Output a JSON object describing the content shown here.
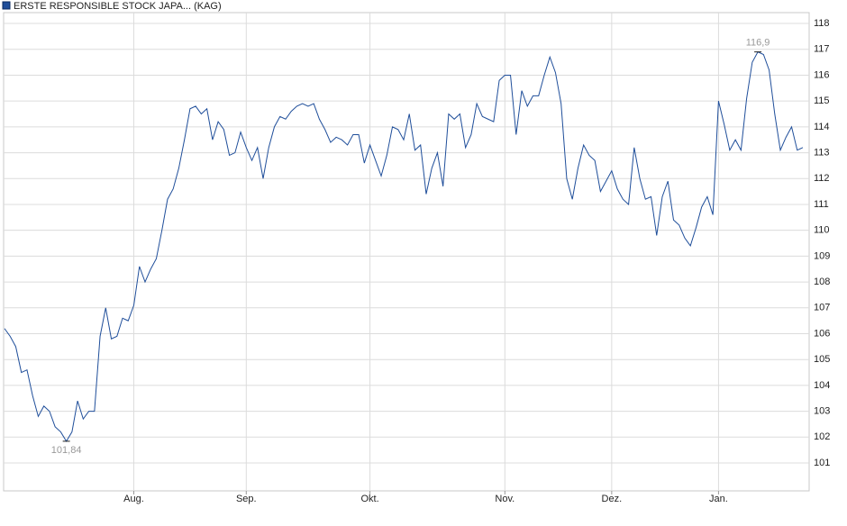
{
  "chart_data": {
    "type": "line",
    "categories": [
      null,
      null,
      null,
      null,
      null,
      null,
      null,
      null,
      null,
      null,
      null,
      null,
      null,
      null,
      null,
      null,
      null,
      null,
      null,
      null,
      null,
      null,
      null,
      "Aug.",
      null,
      null,
      null,
      null,
      null,
      null,
      null,
      null,
      null,
      null,
      null,
      null,
      null,
      null,
      null,
      null,
      null,
      null,
      null,
      "Sep.",
      null,
      null,
      null,
      null,
      null,
      null,
      null,
      null,
      null,
      null,
      null,
      null,
      null,
      null,
      null,
      null,
      null,
      null,
      null,
      null,
      null,
      "Okt.",
      null,
      null,
      null,
      null,
      null,
      null,
      null,
      null,
      null,
      null,
      null,
      null,
      null,
      null,
      null,
      null,
      null,
      null,
      null,
      null,
      null,
      null,
      null,
      "Nov.",
      null,
      null,
      null,
      null,
      null,
      null,
      null,
      null,
      null,
      null,
      null,
      null,
      null,
      null,
      null,
      null,
      null,
      null,
      "Dez.",
      null,
      null,
      null,
      null,
      null,
      null,
      null,
      null,
      null,
      null,
      null,
      null,
      null,
      null,
      null,
      null,
      null,
      null,
      "Jan.",
      null,
      null,
      null,
      null,
      null,
      null,
      null,
      null,
      null,
      null,
      null,
      null,
      null,
      null,
      null
    ],
    "series": [
      {
        "name": "ERSTE RESPONSIBLE STOCK JAPA... (KAG)",
        "color": "#1f4e9a",
        "values": [
          106.2,
          105.9,
          105.5,
          104.5,
          104.6,
          103.6,
          102.8,
          103.2,
          103.0,
          102.4,
          102.2,
          101.84,
          102.2,
          103.4,
          102.7,
          103.0,
          103.0,
          105.9,
          107.0,
          105.8,
          105.9,
          106.6,
          106.5,
          107.1,
          108.6,
          108.0,
          108.5,
          108.9,
          110.0,
          111.2,
          111.6,
          112.4,
          113.5,
          114.7,
          114.8,
          114.5,
          114.7,
          113.5,
          114.2,
          113.9,
          112.9,
          113.0,
          113.8,
          113.2,
          112.7,
          113.2,
          112.0,
          113.2,
          114.0,
          114.4,
          114.3,
          114.6,
          114.8,
          114.9,
          114.8,
          114.9,
          114.3,
          113.9,
          113.4,
          113.6,
          113.5,
          113.3,
          113.7,
          113.7,
          112.6,
          113.3,
          112.7,
          112.1,
          112.9,
          114.0,
          113.9,
          113.5,
          114.5,
          113.1,
          113.3,
          111.4,
          112.4,
          113.0,
          111.7,
          114.5,
          114.3,
          114.5,
          113.2,
          113.7,
          114.9,
          114.4,
          114.3,
          114.2,
          115.8,
          116.0,
          116.0,
          113.7,
          115.4,
          114.8,
          115.2,
          115.2,
          116.0,
          116.7,
          116.1,
          114.9,
          112.0,
          111.2,
          112.4,
          113.3,
          112.9,
          112.7,
          111.5,
          111.9,
          112.3,
          111.6,
          111.2,
          111.0,
          113.2,
          112.0,
          111.2,
          111.3,
          109.8,
          111.3,
          111.9,
          110.4,
          110.2,
          109.7,
          109.4,
          110.1,
          110.9,
          111.3,
          110.6,
          115.0,
          114.1,
          113.1,
          113.5,
          113.1,
          115.1,
          116.5,
          116.9,
          116.8,
          116.2,
          114.5,
          113.1,
          113.6,
          114.0,
          113.1,
          113.2
        ],
        "value_labels": [
          null,
          null,
          null,
          null,
          null,
          null,
          null,
          null,
          null,
          null,
          null,
          "101,84",
          null,
          null,
          null,
          null,
          null,
          null,
          null,
          null,
          null,
          null,
          null,
          null,
          null,
          null,
          null,
          null,
          null,
          null,
          null,
          null,
          null,
          null,
          null,
          null,
          null,
          null,
          null,
          null,
          null,
          null,
          null,
          null,
          null,
          null,
          null,
          null,
          null,
          null,
          null,
          null,
          null,
          null,
          null,
          null,
          null,
          null,
          null,
          null,
          null,
          null,
          null,
          null,
          null,
          null,
          null,
          null,
          null,
          null,
          null,
          null,
          null,
          null,
          null,
          null,
          null,
          null,
          null,
          null,
          null,
          null,
          null,
          null,
          null,
          null,
          null,
          null,
          null,
          null,
          null,
          null,
          null,
          null,
          null,
          null,
          null,
          null,
          null,
          null,
          null,
          null,
          null,
          null,
          null,
          null,
          null,
          null,
          null,
          null,
          null,
          null,
          null,
          null,
          null,
          null,
          null,
          null,
          null,
          null,
          null,
          null,
          null,
          null,
          null,
          null,
          null,
          null,
          null,
          null,
          null,
          null,
          null,
          null,
          "116,9",
          null,
          null,
          null,
          null,
          null,
          null,
          null,
          null
        ]
      }
    ],
    "ylim": [
      99.92,
      118.42
    ],
    "yticks": [
      101,
      102,
      103,
      104,
      105,
      106,
      107,
      108,
      109,
      110,
      111,
      112,
      113,
      114,
      115,
      116,
      117,
      118
    ],
    "grid": true
  }
}
